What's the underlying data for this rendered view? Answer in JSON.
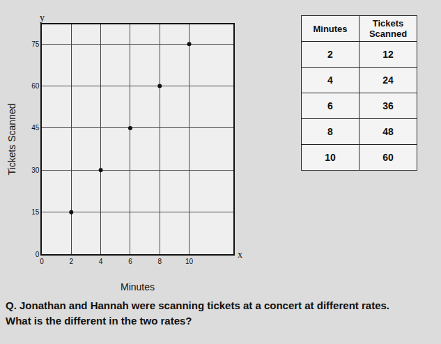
{
  "chart_data": {
    "type": "scatter",
    "x_label": "Minutes",
    "y_label": "Tickets Scanned",
    "x": [
      2,
      4,
      6,
      8,
      10
    ],
    "values": [
      15,
      30,
      45,
      60,
      75
    ],
    "color": "#111111",
    "marker": "circle",
    "xlim": [
      0,
      13
    ],
    "xticks": [
      0,
      2,
      4,
      6,
      8,
      10
    ],
    "ylim": [
      0,
      82
    ],
    "yticks": [
      0,
      15,
      30,
      45,
      60,
      75
    ],
    "grid": true,
    "annotations": [
      {
        "text": "y"
      },
      {
        "text": "x"
      }
    ]
  },
  "table": {
    "header": [
      "Minutes",
      "Tickets Scanned"
    ],
    "rows": [
      [
        2,
        12
      ],
      [
        4,
        24
      ],
      [
        6,
        36
      ],
      [
        8,
        48
      ],
      [
        10,
        60
      ]
    ]
  },
  "question": [
    "Q. Jonathan and Hannah were scanning tickets at a concert at different rates.",
    "What is the different in the two rates?"
  ]
}
